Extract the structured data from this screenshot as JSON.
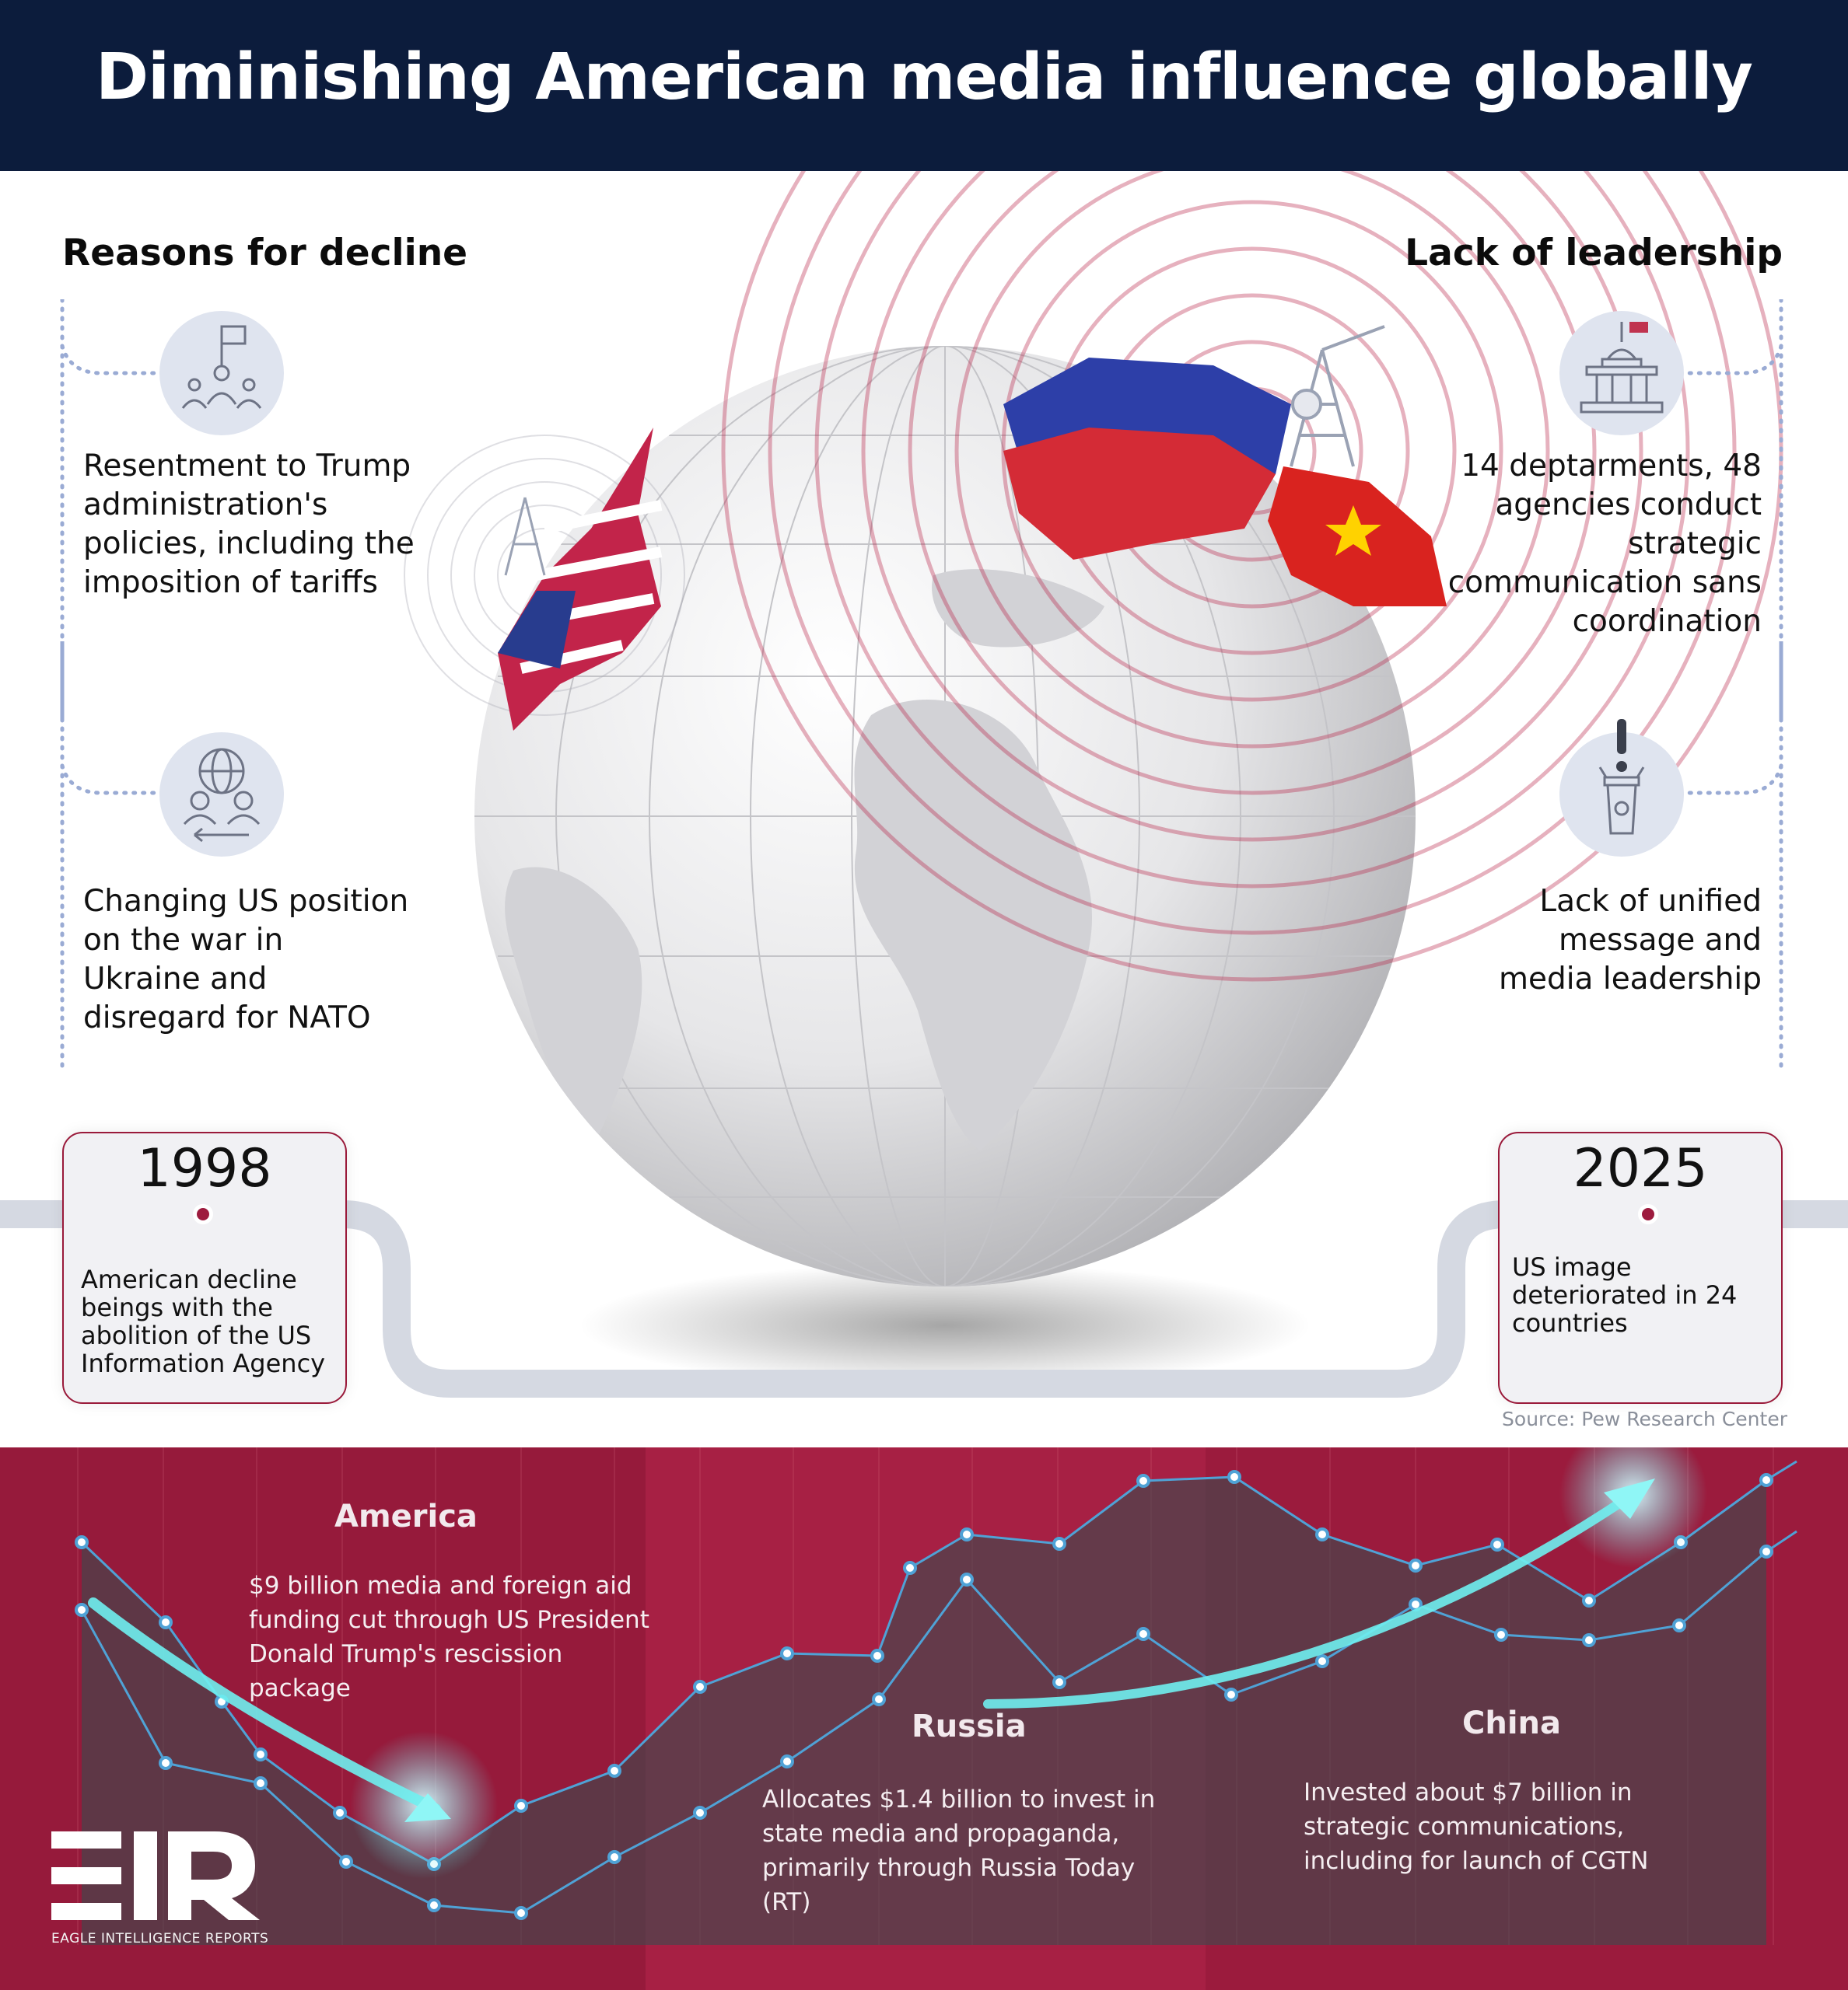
{
  "title": "Diminishing American media influence globally",
  "left_section": {
    "heading": "Reasons for decline",
    "items": [
      {
        "icon": "protest-icon",
        "text": "Resentment to Trump administration's policies, including the imposition of tariffs"
      },
      {
        "icon": "global-exchange-icon",
        "text": "Changing US position on the war in Ukraine and disregard for NATO"
      }
    ]
  },
  "right_section": {
    "heading": "Lack of leadership",
    "items": [
      {
        "icon": "government-building-icon",
        "text": "14 deptarments, 48 agencies conduct strategic communication sans coordination"
      },
      {
        "icon": "podium-icon",
        "text": "Lack of unified message and media leadership"
      }
    ]
  },
  "timeline": {
    "start": {
      "year": "1998",
      "text": "American decline beings with the abolition of the US Information Agency"
    },
    "end": {
      "year": "2025",
      "text": "US image deteriorated in 24 countries"
    }
  },
  "source": "Source: Pew Research Center",
  "panels": [
    {
      "title": "America",
      "text": "$9 billion media and foreign aid funding cut through US President Donald Trump's rescission package"
    },
    {
      "title": "Russia",
      "text": "Allocates $1.4 billion to invest in state media and propaganda, primarily through Russia Today (RT)"
    },
    {
      "title": "China",
      "text": "Invested about $7 billion in strategic communications, including for launch of CGTN"
    }
  ],
  "logo": {
    "mark": "EIR",
    "name": "EAGLE INTELLIGENCE REPORTS"
  },
  "colors": {
    "navy": "#0c1c3c",
    "crimson": "#a11d40",
    "accent_cyan": "#5fe3e6",
    "icon_bg": "#dfe4ef"
  }
}
